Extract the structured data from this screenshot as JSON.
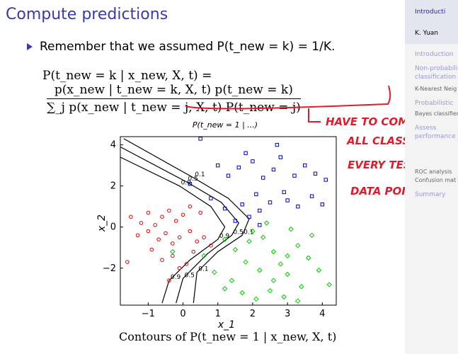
{
  "slide": {
    "title": "Compute predictions",
    "bullet": "Remember that we assumed P(t_new = k) = 1/K.",
    "formula_lhs": "P(t_new = k | x_new, X, t) =",
    "formula_num": "p(x_new | t_new = k, X, t) p(t_new = k)",
    "formula_den": "∑_j p(x_new | t_new = j, X, t) P(t_new = j)",
    "caption": "Contours of P(t_new = 1 | x_new, X, t)"
  },
  "annotation": {
    "handwriting": [
      "HAVE TO COMPUTE",
      "ALL CLASS FOR",
      "EVERY TEST",
      "DATA POINT"
    ],
    "color": "#e01b2b"
  },
  "sidebar": {
    "items": [
      {
        "label": "Introducti",
        "style": "head"
      },
      {
        "label": "K. Yuan",
        "style": "author"
      },
      {
        "label": "Introduction",
        "style": "section"
      },
      {
        "label": "Non-probabili",
        "style": "section"
      },
      {
        "label": "classification",
        "style": "section"
      },
      {
        "label": "K-Nearest Neig",
        "style": "sub"
      },
      {
        "label": "Probabilistic",
        "style": "section"
      },
      {
        "label": "Bayes classifier",
        "style": "sub"
      },
      {
        "label": "Assess",
        "style": "section"
      },
      {
        "label": "performance",
        "style": "section"
      },
      {
        "label": "ROC analysis",
        "style": "sub"
      },
      {
        "label": "Confusion mat",
        "style": "sub"
      },
      {
        "label": "Summary",
        "style": "section"
      }
    ]
  },
  "chart_data": {
    "type": "scatter",
    "title": "P(t_new = 1 | ...)",
    "xlabel": "x_1",
    "ylabel": "x_2",
    "xlim": [
      -1.8,
      4.4
    ],
    "ylim": [
      -3.8,
      4.4
    ],
    "xticks": [
      "-1",
      "0",
      "1",
      "2",
      "3",
      "4"
    ],
    "yticks": [
      "4",
      "2",
      "0",
      "-2"
    ],
    "contours": [
      {
        "label": "0.1",
        "color": "#000000"
      },
      {
        "label": "0.5",
        "color": "#000000"
      },
      {
        "label": "0.9",
        "color": "#000000"
      }
    ],
    "series": [
      {
        "color": "#e00000",
        "marker": "circle",
        "points": [
          [
            -1.5,
            0.5
          ],
          [
            -1.2,
            0.2
          ],
          [
            -1.0,
            0.7
          ],
          [
            -0.8,
            0.1
          ],
          [
            -0.6,
            0.5
          ],
          [
            -0.4,
            0.8
          ],
          [
            -0.2,
            0.3
          ],
          [
            0.0,
            0.6
          ],
          [
            0.2,
            1.0
          ],
          [
            0.5,
            0.7
          ],
          [
            -1.3,
            -0.4
          ],
          [
            -1.0,
            -0.2
          ],
          [
            -0.7,
            -0.6
          ],
          [
            -0.5,
            -0.3
          ],
          [
            -0.3,
            -0.8
          ],
          [
            -0.1,
            -0.5
          ],
          [
            0.2,
            -0.2
          ],
          [
            0.4,
            -0.7
          ],
          [
            -0.9,
            -1.1
          ],
          [
            -0.6,
            -1.6
          ],
          [
            -0.3,
            -1.4
          ],
          [
            -0.1,
            -2.0
          ],
          [
            0.3,
            -1.2
          ],
          [
            0.6,
            -0.5
          ],
          [
            0.8,
            -0.9
          ],
          [
            -1.6,
            -1.7
          ],
          [
            -0.4,
            -2.6
          ],
          [
            0.1,
            -1.8
          ]
        ]
      },
      {
        "color": "#0000cc",
        "marker": "square",
        "points": [
          [
            1.0,
            3.0
          ],
          [
            1.3,
            2.5
          ],
          [
            1.6,
            2.9
          ],
          [
            2.0,
            3.2
          ],
          [
            2.3,
            2.4
          ],
          [
            2.6,
            2.8
          ],
          [
            2.8,
            3.4
          ],
          [
            3.2,
            2.5
          ],
          [
            3.5,
            3.0
          ],
          [
            3.8,
            2.6
          ],
          [
            4.1,
            2.3
          ],
          [
            2.1,
            1.6
          ],
          [
            2.5,
            1.2
          ],
          [
            2.9,
            1.7
          ],
          [
            3.3,
            1.0
          ],
          [
            3.7,
            1.5
          ],
          [
            4.0,
            1.1
          ],
          [
            1.7,
            1.1
          ],
          [
            1.9,
            0.5
          ],
          [
            2.2,
            0.8
          ],
          [
            1.5,
            0.3
          ],
          [
            1.2,
            0.9
          ],
          [
            0.8,
            1.4
          ],
          [
            0.2,
            2.1
          ],
          [
            0.5,
            4.3
          ],
          [
            1.8,
            3.6
          ],
          [
            2.7,
            4.0
          ],
          [
            3.0,
            1.3
          ],
          [
            2.2,
            0.1
          ]
        ]
      },
      {
        "color": "#00cc00",
        "marker": "diamond",
        "points": [
          [
            1.2,
            -0.6
          ],
          [
            1.5,
            -1.1
          ],
          [
            1.9,
            -0.7
          ],
          [
            2.3,
            -0.5
          ],
          [
            2.6,
            -1.2
          ],
          [
            3.0,
            -1.4
          ],
          [
            3.3,
            -0.9
          ],
          [
            3.6,
            -1.5
          ],
          [
            3.9,
            -2.1
          ],
          [
            4.2,
            -2.8
          ],
          [
            1.8,
            -1.7
          ],
          [
            2.2,
            -2.1
          ],
          [
            2.6,
            -2.6
          ],
          [
            3.0,
            -2.3
          ],
          [
            3.4,
            -2.9
          ],
          [
            1.4,
            -2.6
          ],
          [
            1.7,
            -3.2
          ],
          [
            2.1,
            -3.5
          ],
          [
            2.5,
            -3.1
          ],
          [
            2.9,
            -3.4
          ],
          [
            3.3,
            -3.6
          ],
          [
            1.2,
            -3.0
          ],
          [
            2.0,
            -0.2
          ],
          [
            2.4,
            0.2
          ],
          [
            3.1,
            -0.1
          ],
          [
            0.6,
            -1.4
          ],
          [
            -0.3,
            -1.2
          ],
          [
            0.9,
            -2.2
          ],
          [
            3.7,
            -0.4
          ],
          [
            2.8,
            -1.8
          ]
        ]
      }
    ]
  }
}
